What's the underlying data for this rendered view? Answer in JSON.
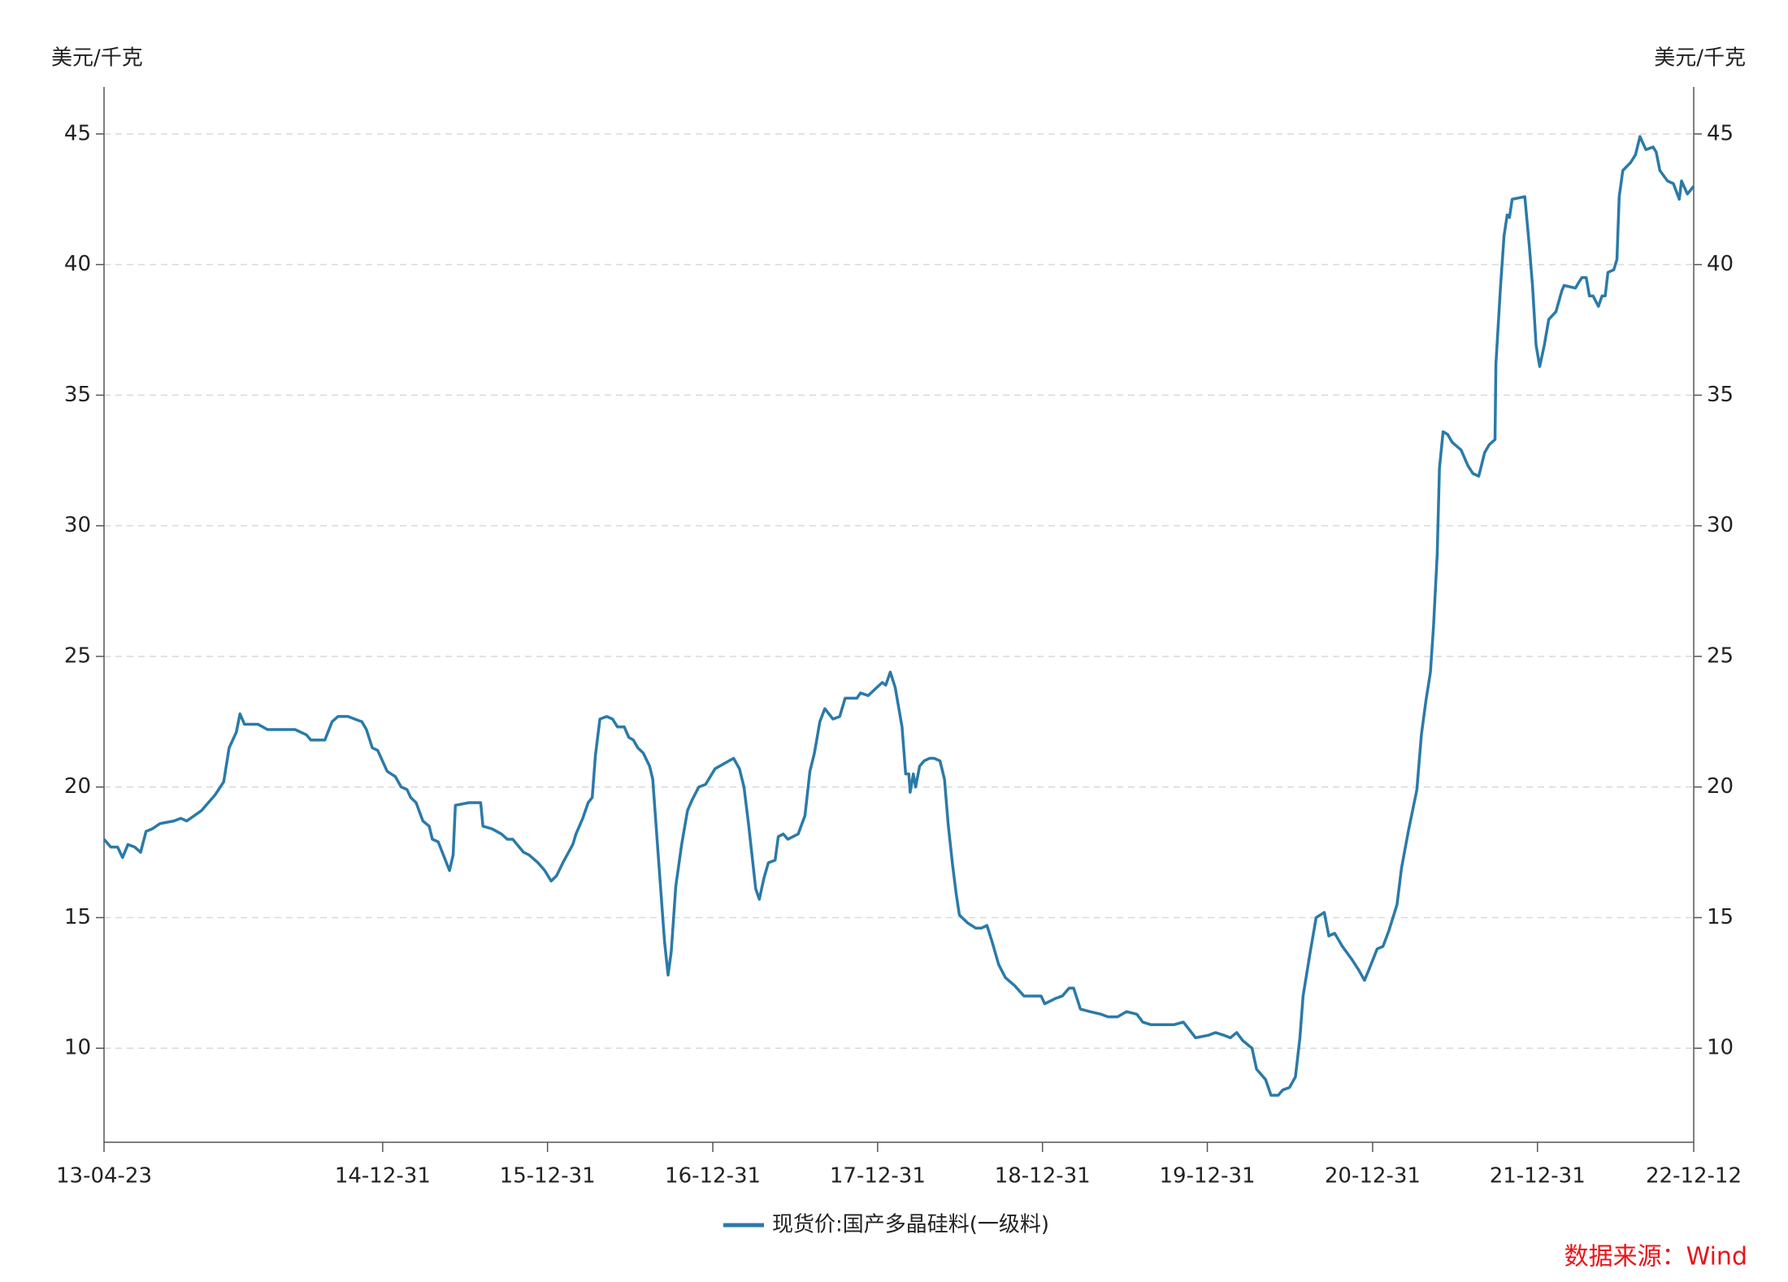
{
  "chart_data": {
    "type": "line",
    "y_label": "美元/千克",
    "y2_label": "美元/千克",
    "source": "数据来源：Wind",
    "grid": true,
    "xlim": [
      "2013-04-23",
      "2022-12-12"
    ],
    "xticks": [
      {
        "value": "2013-04-23",
        "label": "13-04-23"
      },
      {
        "value": "2014-12-31",
        "label": "14-12-31"
      },
      {
        "value": "2015-12-31",
        "label": "15-12-31"
      },
      {
        "value": "2016-12-31",
        "label": "16-12-31"
      },
      {
        "value": "2017-12-31",
        "label": "17-12-31"
      },
      {
        "value": "2018-12-31",
        "label": "18-12-31"
      },
      {
        "value": "2019-12-31",
        "label": "19-12-31"
      },
      {
        "value": "2020-12-31",
        "label": "20-12-31"
      },
      {
        "value": "2021-12-31",
        "label": "21-12-31"
      },
      {
        "value": "2022-12-12",
        "label": "22-12-12"
      }
    ],
    "ylim": [
      6.4,
      46.8
    ],
    "yticks": [
      10,
      15,
      20,
      25,
      30,
      35,
      40,
      45
    ],
    "y2lim": [
      6.4,
      46.8
    ],
    "y2ticks": [
      10,
      15,
      20,
      25,
      30,
      35,
      40,
      45
    ],
    "x": [
      "2013-04-23",
      "2013-05-08",
      "2013-05-23",
      "2013-06-03",
      "2013-06-15",
      "2013-06-30",
      "2013-07-13",
      "2013-07-25",
      "2013-08-08",
      "2013-08-25",
      "2013-09-25",
      "2013-10-10",
      "2013-10-23",
      "2013-11-25",
      "2013-12-25",
      "2014-01-13",
      "2014-01-25",
      "2014-02-10",
      "2014-02-18",
      "2014-02-28",
      "2014-03-30",
      "2014-04-20",
      "2014-06-20",
      "2014-07-15",
      "2014-07-25",
      "2014-08-25",
      "2014-09-10",
      "2014-09-23",
      "2014-10-15",
      "2014-11-15",
      "2014-11-25",
      "2014-12-08",
      "2014-12-20",
      "2015-01-10",
      "2015-01-28",
      "2015-02-10",
      "2015-02-23",
      "2015-03-03",
      "2015-03-15",
      "2015-03-30",
      "2015-04-13",
      "2015-04-20",
      "2015-05-03",
      "2015-05-28",
      "2015-06-05",
      "2015-06-10",
      "2015-07-10",
      "2015-08-05",
      "2015-08-10",
      "2015-08-30",
      "2015-09-20",
      "2015-10-03",
      "2015-10-15",
      "2015-11-08",
      "2015-11-20",
      "2015-12-10",
      "2015-12-25",
      "2016-01-08",
      "2016-01-20",
      "2016-02-03",
      "2016-02-25",
      "2016-03-03",
      "2016-03-18",
      "2016-03-30",
      "2016-04-08",
      "2016-04-15",
      "2016-04-25",
      "2016-05-10",
      "2016-05-23",
      "2016-06-03",
      "2016-06-18",
      "2016-06-28",
      "2016-07-08",
      "2016-07-18",
      "2016-07-30",
      "2016-08-13",
      "2016-08-20",
      "2016-08-30",
      "2016-09-15",
      "2016-09-23",
      "2016-09-30",
      "2016-10-10",
      "2016-10-23",
      "2016-11-05",
      "2016-11-15",
      "2016-11-30",
      "2016-12-15",
      "2017-01-05",
      "2017-02-15",
      "2017-02-28",
      "2017-03-10",
      "2017-03-20",
      "2017-04-05",
      "2017-04-13",
      "2017-04-23",
      "2017-05-03",
      "2017-05-18",
      "2017-05-25",
      "2017-06-05",
      "2017-06-15",
      "2017-07-08",
      "2017-07-23",
      "2017-08-03",
      "2017-08-13",
      "2017-08-25",
      "2017-09-05",
      "2017-09-23",
      "2017-10-08",
      "2017-10-20",
      "2017-11-15",
      "2017-11-23",
      "2017-12-10",
      "2018-01-10",
      "2018-01-18",
      "2018-01-28",
      "2018-02-08",
      "2018-02-23",
      "2018-03-03",
      "2018-03-10",
      "2018-03-13",
      "2018-03-20",
      "2018-03-25",
      "2018-04-03",
      "2018-04-13",
      "2018-04-25",
      "2018-05-05",
      "2018-05-18",
      "2018-05-28",
      "2018-06-05",
      "2018-06-15",
      "2018-06-23",
      "2018-06-30",
      "2018-07-18",
      "2018-08-05",
      "2018-08-18",
      "2018-08-30",
      "2018-09-10",
      "2018-09-25",
      "2018-10-10",
      "2018-10-30",
      "2018-11-20",
      "2018-12-28",
      "2019-01-05",
      "2019-01-28",
      "2019-02-13",
      "2019-02-28",
      "2019-03-10",
      "2019-03-25",
      "2019-04-15",
      "2019-05-10",
      "2019-05-25",
      "2019-06-15",
      "2019-07-05",
      "2019-07-28",
      "2019-08-10",
      "2019-08-28",
      "2019-10-18",
      "2019-11-08",
      "2019-12-05",
      "2020-01-03",
      "2020-01-18",
      "2020-02-05",
      "2020-02-20",
      "2020-03-05",
      "2020-03-18",
      "2020-04-08",
      "2020-04-18",
      "2020-05-08",
      "2020-05-20",
      "2020-06-05",
      "2020-06-15",
      "2020-06-30",
      "2020-07-13",
      "2020-07-23",
      "2020-07-30",
      "2020-08-15",
      "2020-08-28",
      "2020-09-15",
      "2020-09-25",
      "2020-10-08",
      "2020-10-25",
      "2020-11-15",
      "2020-11-30",
      "2020-12-13",
      "2020-12-25",
      "2021-01-10",
      "2021-01-23",
      "2021-02-05",
      "2021-02-23",
      "2021-03-05",
      "2021-03-20",
      "2021-04-08",
      "2021-04-18",
      "2021-04-28",
      "2021-05-08",
      "2021-05-15",
      "2021-05-23",
      "2021-05-28",
      "2021-06-05",
      "2021-06-15",
      "2021-06-25",
      "2021-07-15",
      "2021-07-30",
      "2021-08-10",
      "2021-08-23",
      "2021-09-05",
      "2021-09-15",
      "2021-09-28",
      "2021-09-30",
      "2021-10-10",
      "2021-10-18",
      "2021-10-25",
      "2021-10-30",
      "2021-11-05",
      "2021-12-03",
      "2021-12-13",
      "2021-12-20",
      "2021-12-28",
      "2022-01-05",
      "2022-01-15",
      "2022-01-25",
      "2022-02-10",
      "2022-02-23",
      "2022-02-28",
      "2022-03-25",
      "2022-04-08",
      "2022-04-18",
      "2022-04-25",
      "2022-05-03",
      "2022-05-15",
      "2022-05-23",
      "2022-05-30",
      "2022-06-05",
      "2022-06-18",
      "2022-06-25",
      "2022-06-30",
      "2022-07-08",
      "2022-07-25",
      "2022-08-05",
      "2022-08-15",
      "2022-08-28",
      "2022-09-13",
      "2022-09-20",
      "2022-09-28",
      "2022-10-15",
      "2022-10-28",
      "2022-11-10",
      "2022-11-15",
      "2022-11-28",
      "2022-12-12"
    ],
    "series": [
      {
        "name": "现货价:国产多晶硅料(一级料)",
        "color": "#2a7aa8",
        "values": [
          18.0,
          17.7,
          17.7,
          17.3,
          17.8,
          17.7,
          17.5,
          18.3,
          18.4,
          18.6,
          18.7,
          18.8,
          18.7,
          19.1,
          19.7,
          20.2,
          21.5,
          22.1,
          22.8,
          22.4,
          22.4,
          22.2,
          22.2,
          22.0,
          21.8,
          21.8,
          22.5,
          22.7,
          22.7,
          22.5,
          22.2,
          21.5,
          21.4,
          20.6,
          20.4,
          20.0,
          19.9,
          19.6,
          19.4,
          18.7,
          18.5,
          18.0,
          17.9,
          16.8,
          17.4,
          19.3,
          19.4,
          19.4,
          18.5,
          18.4,
          18.2,
          18.0,
          18.0,
          17.5,
          17.4,
          17.1,
          16.8,
          16.4,
          16.6,
          17.1,
          17.8,
          18.2,
          18.8,
          19.4,
          19.6,
          21.2,
          22.6,
          22.7,
          22.6,
          22.3,
          22.3,
          21.9,
          21.8,
          21.5,
          21.3,
          20.8,
          20.3,
          17.9,
          14.1,
          12.8,
          13.7,
          16.2,
          17.8,
          19.1,
          19.5,
          20.0,
          20.1,
          20.7,
          21.1,
          20.7,
          20.0,
          18.6,
          16.1,
          15.7,
          16.5,
          17.1,
          17.2,
          18.1,
          18.2,
          18.0,
          18.2,
          18.9,
          20.6,
          21.3,
          22.5,
          23.0,
          22.6,
          22.7,
          23.4,
          23.4,
          23.6,
          23.5,
          24.0,
          23.9,
          24.4,
          23.8,
          22.3,
          20.5,
          20.5,
          19.8,
          20.5,
          20.0,
          20.8,
          21.0,
          21.1,
          21.1,
          21.0,
          20.3,
          18.6,
          17.0,
          15.9,
          15.1,
          14.8,
          14.6,
          14.6,
          14.7,
          14.1,
          13.2,
          12.7,
          12.4,
          12.0,
          12.0,
          11.7,
          11.9,
          12.0,
          12.3,
          12.3,
          11.5,
          11.4,
          11.3,
          11.2,
          11.2,
          11.4,
          11.3,
          11.0,
          10.9,
          10.9,
          11.0,
          10.4,
          10.5,
          10.6,
          10.5,
          10.4,
          10.6,
          10.3,
          10.0,
          9.2,
          8.8,
          8.2,
          8.2,
          8.4,
          8.5,
          8.9,
          10.4,
          12.0,
          13.7,
          15.0,
          15.2,
          14.3,
          14.4,
          13.9,
          13.4,
          13.0,
          12.6,
          13.1,
          13.8,
          13.9,
          14.5,
          15.5,
          16.9,
          18.3,
          19.9,
          22.0,
          23.3,
          24.4,
          26.2,
          28.9,
          32.2,
          33.6,
          33.5,
          33.2,
          32.9,
          32.3,
          32.0,
          31.9,
          32.8,
          33.1,
          33.3,
          36.2,
          39.1,
          41.1,
          41.9,
          41.8,
          42.5,
          42.6,
          40.7,
          39.2,
          36.9,
          36.1,
          36.9,
          37.9,
          38.2,
          39.0,
          39.2,
          39.1,
          39.5,
          39.5,
          38.8,
          38.8,
          38.4,
          38.8,
          38.8,
          39.7,
          39.8,
          40.2,
          42.6,
          43.6,
          43.9,
          44.2,
          44.9,
          44.4,
          44.5,
          44.3,
          43.6,
          43.2,
          43.1,
          42.5,
          43.2,
          42.7,
          43.0
        ]
      }
    ]
  }
}
